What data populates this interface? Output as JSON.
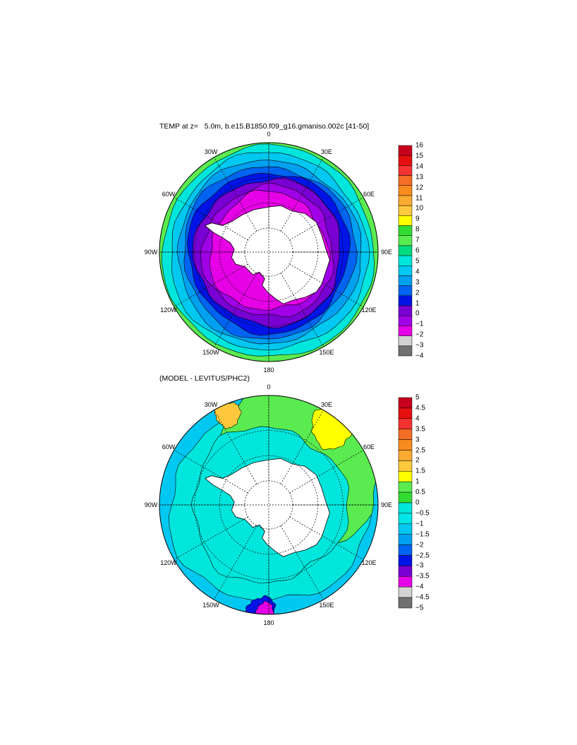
{
  "maps": [
    {
      "title": "TEMP at z=   5.0m, b.e15.B1850.f09_g16.gmaniso.002c [41-50]",
      "longitude_labels": [
        "0",
        "30E",
        "60E",
        "90E",
        "120E",
        "150E",
        "180",
        "150W",
        "120W",
        "90W",
        "60W",
        "30W"
      ],
      "colorbar": {
        "labels": [
          "16",
          "15",
          "14",
          "13",
          "12",
          "11",
          "10",
          "9",
          "8",
          "7",
          "6",
          "5",
          "4",
          "3",
          "2",
          "1",
          "0",
          "−1",
          "−2",
          "−3",
          "−4"
        ],
        "colors": [
          "#c8001e",
          "#e60f0f",
          "#f43232",
          "#f46e28",
          "#f98c1e",
          "#fbab32",
          "#fdc83c",
          "#ffff00",
          "#32dc32",
          "#5aeb50",
          "#00dc82",
          "#00e6dc",
          "#00c8f0",
          "#00a0f0",
          "#0064f0",
          "#0014e6",
          "#7800d2",
          "#a000e6",
          "#e600e6",
          "#d2d2d2",
          "#707070"
        ]
      }
    },
    {
      "title": "(MODEL - LEVITUS/PHC2)",
      "longitude_labels": [
        "0",
        "30E",
        "60E",
        "90E",
        "120E",
        "150E",
        "180",
        "150W",
        "120W",
        "90W",
        "60W",
        "30W"
      ],
      "colorbar": {
        "labels": [
          "5",
          "4.5",
          "4",
          "3.5",
          "3",
          "2.5",
          "2",
          "1.5",
          "1",
          "0.5",
          "0",
          "−0.5",
          "−1",
          "−1.5",
          "−2",
          "−2.5",
          "−3",
          "−3.5",
          "−4",
          "−4.5",
          "−5"
        ],
        "colors": [
          "#c8001e",
          "#e60f0f",
          "#f43232",
          "#f46e28",
          "#f98c1e",
          "#fbab32",
          "#fdc83c",
          "#ffff00",
          "#5aeb50",
          "#32dc32",
          "#00e6dc",
          "#00e6e6",
          "#00c8f0",
          "#00a0f0",
          "#0064f0",
          "#0014e6",
          "#7800d2",
          "#e600e6",
          "#d2d2d2",
          "#707070"
        ]
      }
    }
  ]
}
